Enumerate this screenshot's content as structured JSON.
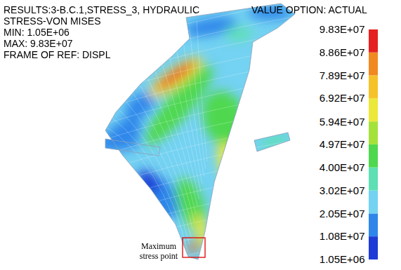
{
  "chart_data": {
    "type": "contour",
    "title": [
      "RESULTS:3-B.C.1,STRESS_3, HYDRAULIC",
      "STRESS-VON MISES"
    ],
    "min": {
      "value": 1050000,
      "label": "MIN: 1.05E+06"
    },
    "max": {
      "value": 98300000,
      "label": "MAX: 9.83E+07"
    },
    "frame_of_ref": "FRAME OF REF: DISPL",
    "value_option": "VALUE OPTION: ACTUAL",
    "colorbar": {
      "ticks": [
        {
          "value": 1050000,
          "label": "1.05E+06"
        },
        {
          "value": 10800000,
          "label": "1.08E+07"
        },
        {
          "value": 20500000,
          "label": "2.05E+07"
        },
        {
          "value": 30200000,
          "label": "3.02E+07"
        },
        {
          "value": 40000000,
          "label": "4.00E+07"
        },
        {
          "value": 49700000,
          "label": "4.97E+07"
        },
        {
          "value": 59400000,
          "label": "5.94E+07"
        },
        {
          "value": 69200000,
          "label": "6.92E+07"
        },
        {
          "value": 78900000,
          "label": "7.89E+07"
        },
        {
          "value": 88600000,
          "label": "8.86E+07"
        },
        {
          "value": 98300000,
          "label": "9.83E+07"
        }
      ],
      "colors": [
        "#1f3bd6",
        "#2f86ea",
        "#74d2f2",
        "#5fe0b4",
        "#4fd84f",
        "#a4e23a",
        "#ece83a",
        "#f6c22a",
        "#f08a20",
        "#e62020"
      ]
    },
    "annotation": "Maximum stress point"
  }
}
